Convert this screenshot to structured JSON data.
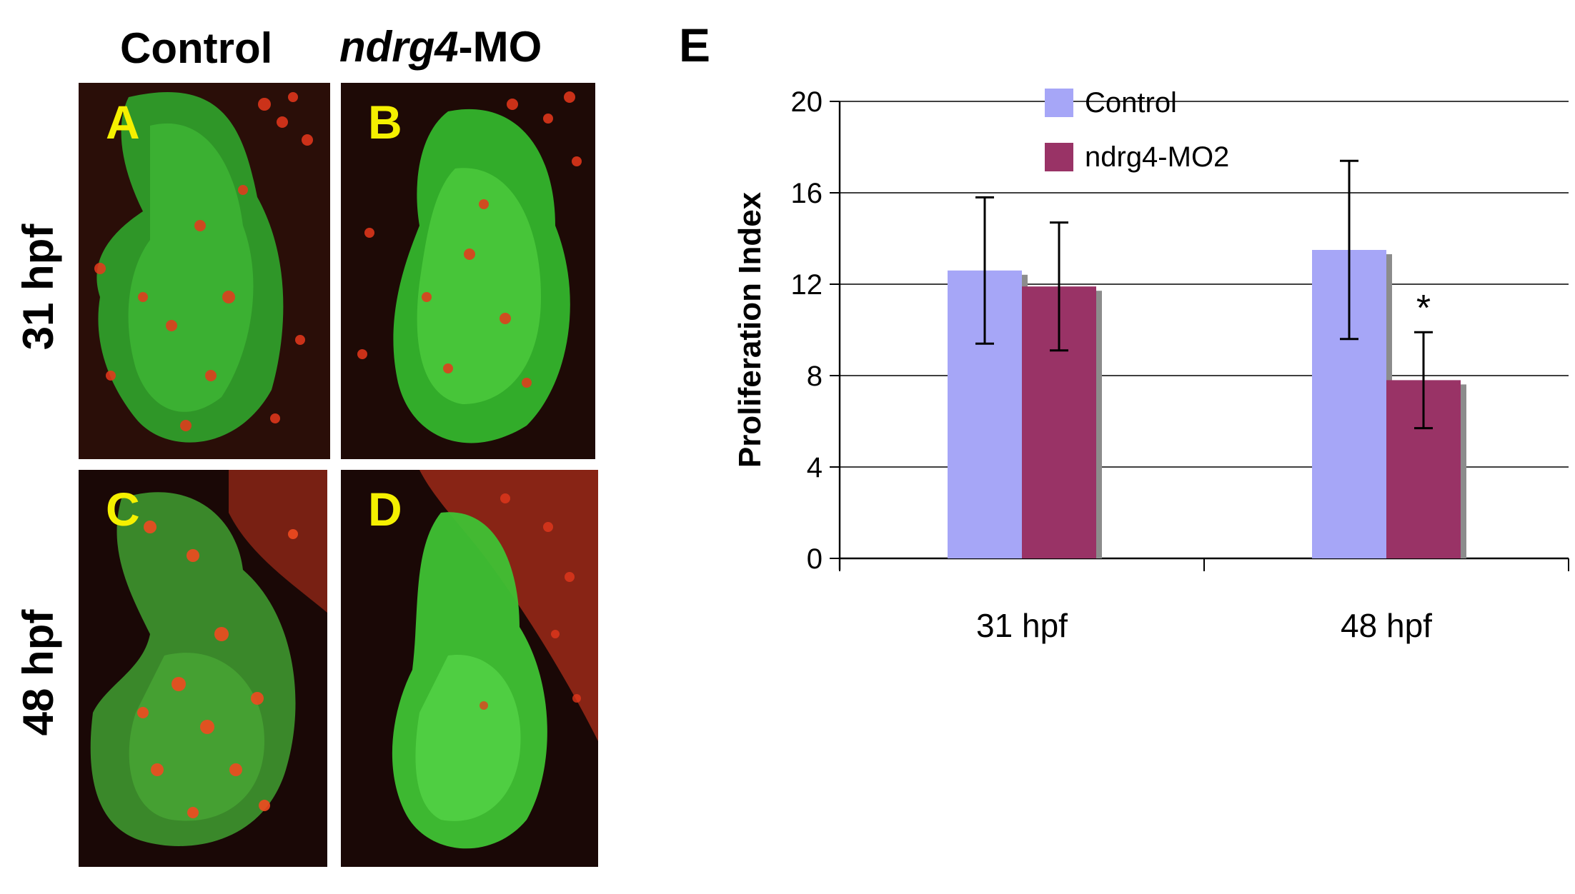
{
  "column_labels": {
    "control": "Control",
    "morphant_italic": "ndrg4",
    "morphant_suffix": "-MO"
  },
  "row_labels": {
    "row1": "31 hpf",
    "row2": "48 hpf"
  },
  "panels": {
    "a": "A",
    "b": "B",
    "c": "C",
    "d": "D"
  },
  "chart_letter": "E",
  "colors": {
    "control": "#a6a6f7",
    "morphant": "#993366",
    "shadow": "#8c8c8c",
    "panel_letter": "#f5f000",
    "gfp": "#3ccf2a",
    "nuclei": "#e8381c"
  },
  "chart_data": {
    "type": "bar",
    "title": "",
    "xlabel": "",
    "ylabel": "Proliferation Index",
    "categories": [
      "31 hpf",
      "48 hpf"
    ],
    "ylim": [
      0,
      20
    ],
    "yticks": [
      "0",
      "4",
      "8",
      "12",
      "16",
      "20"
    ],
    "grid": true,
    "legend_position": "top-left",
    "series": [
      {
        "name": "Control",
        "values": [
          12.6,
          13.5
        ],
        "error": [
          3.2,
          3.9
        ]
      },
      {
        "name": "ndrg4-MO2",
        "values": [
          11.9,
          7.8
        ],
        "error": [
          2.8,
          2.1
        ]
      }
    ],
    "annotations": [
      {
        "category": "48 hpf",
        "series": "ndrg4-MO2",
        "text": "*"
      }
    ]
  }
}
